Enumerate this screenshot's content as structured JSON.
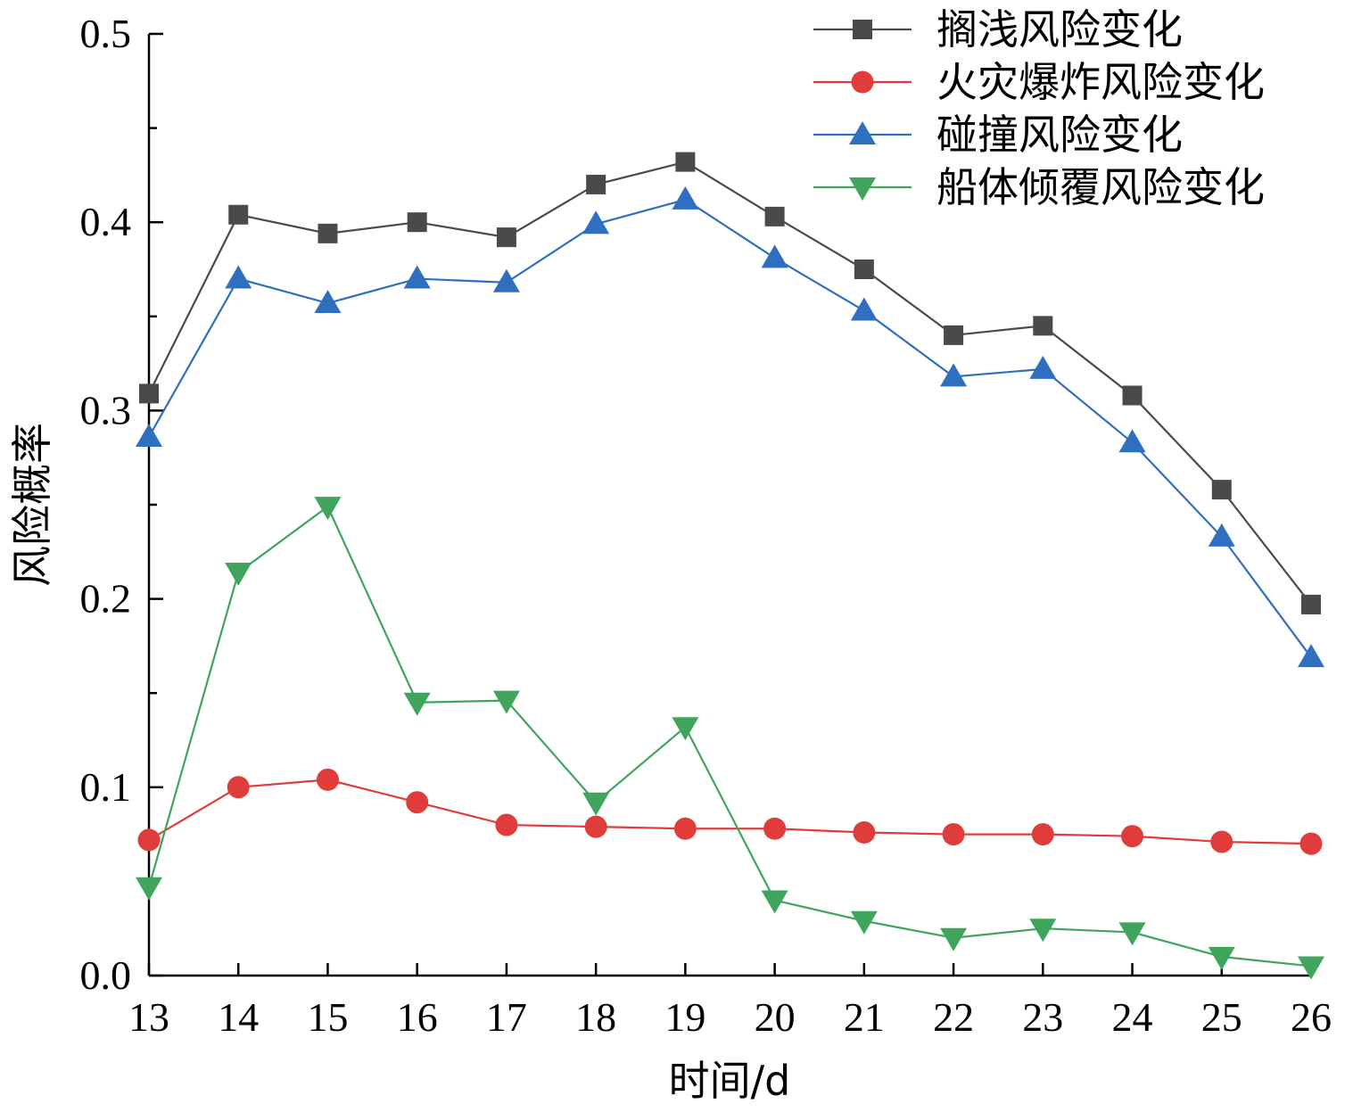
{
  "chart_data": {
    "type": "line",
    "title": "",
    "xlabel": "时间/d",
    "ylabel": "风险概率",
    "xlim": [
      13,
      26
    ],
    "ylim": [
      0,
      0.5
    ],
    "x": [
      13,
      14,
      15,
      16,
      17,
      18,
      19,
      20,
      21,
      22,
      23,
      24,
      25,
      26
    ],
    "x_tick_labels": [
      "13",
      "14",
      "15",
      "16",
      "17",
      "18",
      "19",
      "20",
      "21",
      "22",
      "23",
      "24",
      "25",
      "26"
    ],
    "y_tick_labels": [
      "0.0",
      "0.1",
      "0.2",
      "0.3",
      "0.4",
      "0.5"
    ],
    "y_ticks": [
      0,
      0.1,
      0.2,
      0.3,
      0.4,
      0.5
    ],
    "grid": false,
    "legend_position": "top-right",
    "series": [
      {
        "name": "搁浅风险变化",
        "color": "#4a4a4a",
        "marker": "square",
        "values": [
          0.309,
          0.404,
          0.394,
          0.4,
          0.392,
          0.42,
          0.432,
          0.403,
          0.375,
          0.34,
          0.345,
          0.308,
          0.258,
          0.197
        ]
      },
      {
        "name": "火灾爆炸风险变化",
        "color": "#e03c3c",
        "marker": "circle",
        "values": [
          0.072,
          0.1,
          0.104,
          0.092,
          0.08,
          0.079,
          0.078,
          0.078,
          0.076,
          0.075,
          0.075,
          0.074,
          0.071,
          0.07
        ]
      },
      {
        "name": "碰撞风险变化",
        "color": "#2e6fc0",
        "marker": "triangle-up",
        "values": [
          0.286,
          0.37,
          0.357,
          0.37,
          0.368,
          0.399,
          0.412,
          0.381,
          0.353,
          0.318,
          0.322,
          0.283,
          0.233,
          0.169
        ]
      },
      {
        "name": "船体倾覆风险变化",
        "color": "#3fa55d",
        "marker": "triangle-down",
        "values": [
          0.047,
          0.214,
          0.249,
          0.145,
          0.146,
          0.092,
          0.132,
          0.04,
          0.029,
          0.02,
          0.025,
          0.023,
          0.01,
          0.005
        ]
      }
    ]
  }
}
